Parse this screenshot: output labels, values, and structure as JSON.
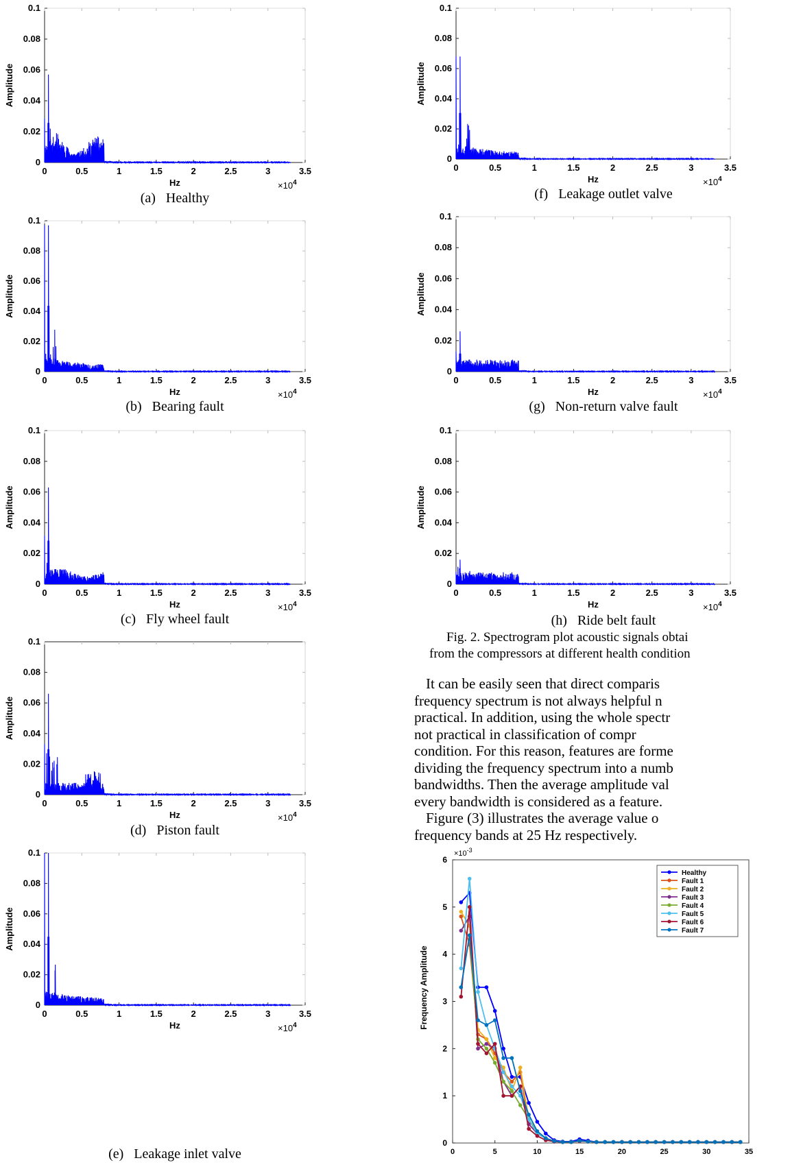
{
  "spectra": [
    {
      "id": "a",
      "caption": "(a)   Healthy",
      "peak": 0.057,
      "seed": 11,
      "tone": "healthy"
    },
    {
      "id": "b",
      "caption": "(b)   Bearing fault",
      "peak": 0.097,
      "seed": 23,
      "tone": "low"
    },
    {
      "id": "c",
      "caption": "(c)   Fly wheel fault",
      "peak": 0.063,
      "seed": 37,
      "tone": "mid"
    },
    {
      "id": "d",
      "caption": "(d)   Piston fault",
      "peak": 0.066,
      "seed": 41,
      "tone": "piston"
    },
    {
      "id": "e",
      "caption": "(e)   Leakage inlet valve",
      "peak": 0.1,
      "seed": 53,
      "tone": "low"
    },
    {
      "id": "f",
      "caption": "(f)   Leakage outlet valve",
      "peak": 0.068,
      "seed": 67,
      "tone": "low"
    },
    {
      "id": "g",
      "caption": "(g)   Non-return valve fault",
      "peak": 0.026,
      "seed": 79,
      "tone": "flat"
    },
    {
      "id": "h",
      "caption": "(h)   Ride belt fault",
      "peak": 0.016,
      "seed": 83,
      "tone": "flat"
    }
  ],
  "axes": {
    "ylabel": "Amplitude",
    "xlabel": "Hz",
    "yticks": [
      "0",
      "0.02",
      "0.04",
      "0.06",
      "0.08",
      "0.1"
    ],
    "xticks": [
      "0",
      "0.5",
      "1",
      "1.5",
      "2",
      "2.5",
      "3",
      "3.5"
    ],
    "exponent_base": "×10",
    "exponent_power": "4"
  },
  "figure_caption": {
    "line1": "Fig. 2. Spectrogram plot acoustic signals obtai",
    "line2": "from the compressors at different health condition"
  },
  "paragraph1": [
    "It can be easily seen that direct comparis",
    "frequency spectrum is not always helpful n",
    "practical.  In addition, using the whole spectr",
    "not   practical   in   classification   of   compr",
    "condition. For this reason, features are forme",
    "dividing the frequency spectrum into a numb",
    "bandwidths. Then the average amplitude val",
    "every bandwidth is considered as a feature."
  ],
  "paragraph2": [
    "Figure (3) illustrates the average value o",
    "frequency bands at 25 Hz respectively."
  ],
  "chart_data": [
    {
      "type": "line",
      "title": "",
      "xlabel": "",
      "ylabel": "Frequency Amplitude",
      "yscale_label": "×10",
      "yscale_power": "-3",
      "xlim": [
        0,
        35
      ],
      "ylim": [
        0,
        6
      ],
      "xticks": [
        "0",
        "5",
        "10",
        "15",
        "20",
        "25",
        "30",
        "35"
      ],
      "yticks": [
        "0",
        "1",
        "2",
        "3",
        "4",
        "5",
        "6"
      ],
      "legend_position": "top-right",
      "x": [
        1,
        2,
        3,
        4,
        5,
        6,
        7,
        8,
        9,
        10,
        11,
        12,
        13,
        14,
        15,
        16,
        17,
        18,
        19,
        20,
        21,
        22,
        23,
        24,
        25,
        26,
        27,
        28,
        29,
        30,
        31,
        32,
        33,
        34
      ],
      "series": [
        {
          "name": "Healthy",
          "color": "#0000ff",
          "values": [
            5.1,
            5.3,
            3.3,
            3.3,
            2.8,
            2.0,
            1.4,
            1.4,
            0.85,
            0.45,
            0.2,
            0.06,
            0.03,
            0.03,
            0.08,
            0.05,
            0.02,
            0.02,
            0.02,
            0.02,
            0.02,
            0.02,
            0.02,
            0.02,
            0.02,
            0.02,
            0.02,
            0.02,
            0.02,
            0.02,
            0.02,
            0.02,
            0.02,
            0.02
          ]
        },
        {
          "name": "Fault 1",
          "color": "#d95319",
          "values": [
            4.8,
            4.2,
            2.3,
            2.2,
            1.9,
            1.5,
            1.3,
            1.5,
            0.4,
            0.2,
            0.1,
            0.04,
            0.02,
            0.02,
            0.05,
            0.03,
            0.02,
            0.02,
            0.02,
            0.02,
            0.02,
            0.02,
            0.02,
            0.02,
            0.02,
            0.02,
            0.02,
            0.02,
            0.02,
            0.02,
            0.02,
            0.02,
            0.02,
            0.02
          ]
        },
        {
          "name": "Fault 2",
          "color": "#edb120",
          "values": [
            4.9,
            4.6,
            2.4,
            2.2,
            1.8,
            1.6,
            1.1,
            1.6,
            0.5,
            0.25,
            0.1,
            0.04,
            0.02,
            0.02,
            0.04,
            0.03,
            0.02,
            0.02,
            0.02,
            0.02,
            0.02,
            0.02,
            0.02,
            0.02,
            0.02,
            0.02,
            0.02,
            0.02,
            0.02,
            0.02,
            0.02,
            0.02,
            0.02,
            0.02
          ]
        },
        {
          "name": "Fault 3",
          "color": "#7e2f8e",
          "values": [
            4.5,
            4.8,
            2.0,
            2.1,
            2.0,
            1.3,
            1.0,
            1.2,
            0.4,
            0.2,
            0.1,
            0.03,
            0.02,
            0.02,
            0.04,
            0.03,
            0.02,
            0.02,
            0.02,
            0.02,
            0.02,
            0.02,
            0.02,
            0.02,
            0.02,
            0.02,
            0.02,
            0.02,
            0.02,
            0.02,
            0.02,
            0.02,
            0.02,
            0.02
          ]
        },
        {
          "name": "Fault 4",
          "color": "#77ac30",
          "values": [
            3.3,
            4.4,
            2.2,
            2.0,
            1.7,
            1.3,
            1.1,
            0.8,
            0.5,
            0.2,
            0.1,
            0.03,
            0.02,
            0.02,
            0.04,
            0.03,
            0.02,
            0.02,
            0.02,
            0.02,
            0.02,
            0.02,
            0.02,
            0.02,
            0.02,
            0.02,
            0.02,
            0.02,
            0.02,
            0.02,
            0.02,
            0.02,
            0.02,
            0.02
          ]
        },
        {
          "name": "Fault 5",
          "color": "#4dbeee",
          "values": [
            3.7,
            5.6,
            3.2,
            2.5,
            2.0,
            1.5,
            1.2,
            1.0,
            0.5,
            0.2,
            0.1,
            0.03,
            0.02,
            0.02,
            0.04,
            0.03,
            0.02,
            0.02,
            0.02,
            0.02,
            0.02,
            0.02,
            0.02,
            0.02,
            0.02,
            0.02,
            0.02,
            0.02,
            0.02,
            0.02,
            0.02,
            0.02,
            0.02,
            0.02
          ]
        },
        {
          "name": "Fault 6",
          "color": "#a2142f",
          "values": [
            3.1,
            5.0,
            2.1,
            1.9,
            2.1,
            1.0,
            1.0,
            1.2,
            0.3,
            0.15,
            0.06,
            0.03,
            0.02,
            0.02,
            0.04,
            0.03,
            0.02,
            0.02,
            0.02,
            0.02,
            0.02,
            0.02,
            0.02,
            0.02,
            0.02,
            0.02,
            0.02,
            0.02,
            0.02,
            0.02,
            0.02,
            0.02,
            0.02,
            0.02
          ]
        },
        {
          "name": "Fault 7",
          "color": "#0072bd",
          "values": [
            3.3,
            4.4,
            2.6,
            2.5,
            2.6,
            1.8,
            1.8,
            1.1,
            0.6,
            0.25,
            0.1,
            0.04,
            0.02,
            0.02,
            0.05,
            0.03,
            0.02,
            0.02,
            0.02,
            0.02,
            0.02,
            0.02,
            0.02,
            0.02,
            0.02,
            0.02,
            0.02,
            0.02,
            0.02,
            0.02,
            0.02,
            0.02,
            0.02,
            0.02
          ]
        }
      ]
    }
  ]
}
